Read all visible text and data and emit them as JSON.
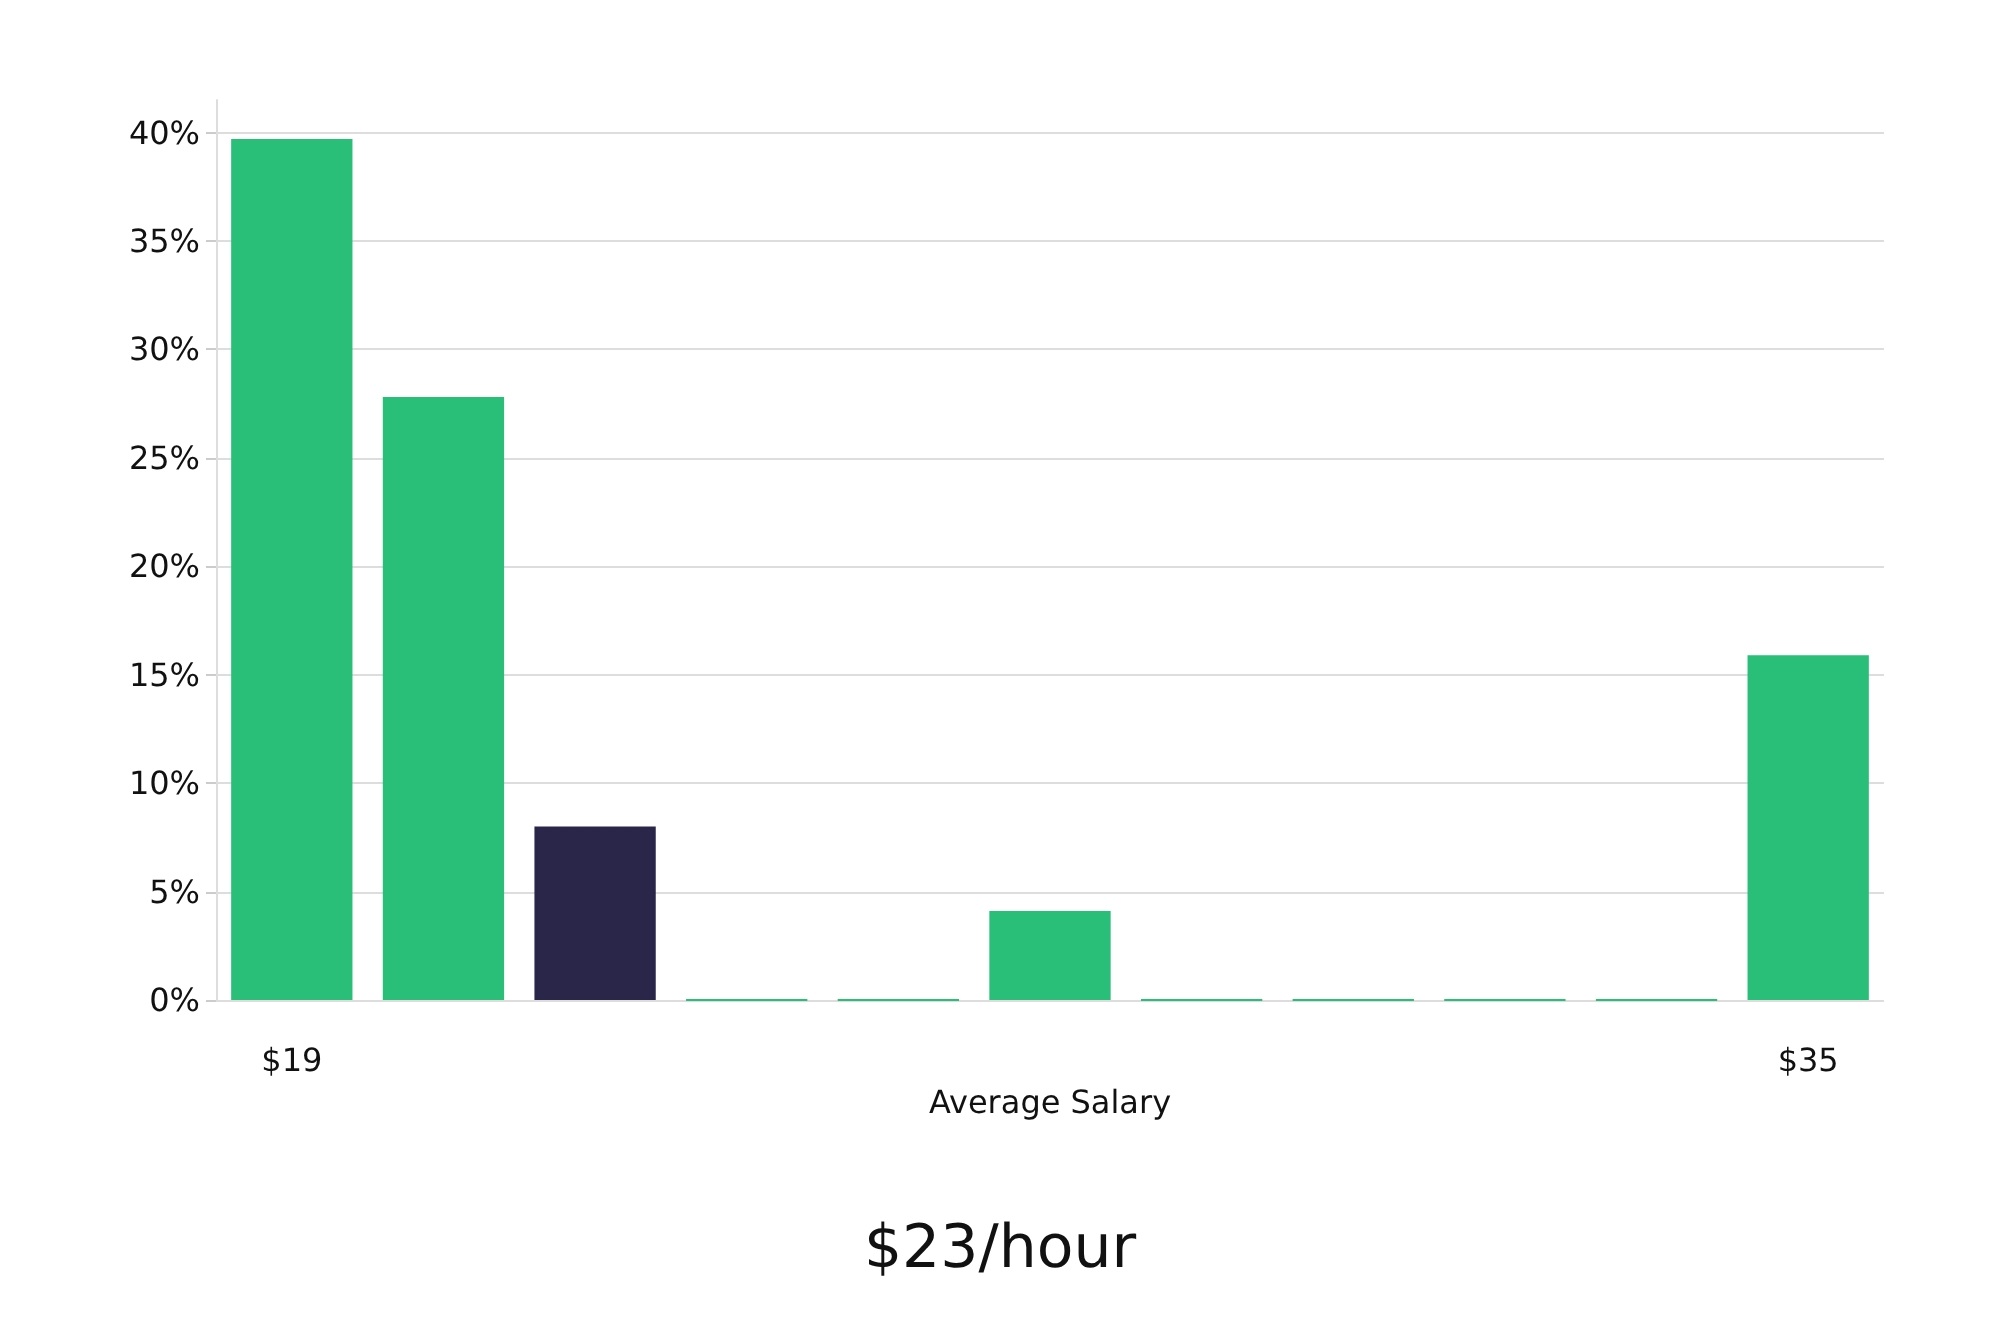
{
  "chart_data": {
    "type": "bar",
    "title": "$23/hour",
    "xlabel": "Average Salary",
    "categories": [
      "$19",
      null,
      null,
      null,
      null,
      null,
      null,
      null,
      null,
      null,
      "$35"
    ],
    "values": [
      39.7,
      27.8,
      8.0,
      0,
      0,
      4.1,
      0,
      0,
      0,
      0,
      15.9
    ],
    "colors": [
      "#2abf78",
      "#2abf78",
      "#2a2649",
      "#2abf78",
      "#2abf78",
      "#2abf78",
      "#2abf78",
      "#2abf78",
      "#2abf78",
      "#2abf78",
      "#2abf78"
    ],
    "ylim": [
      0,
      41.5
    ],
    "yticks": [
      {
        "value": 0,
        "label": "0%"
      },
      {
        "value": 5,
        "label": "5%"
      },
      {
        "value": 10,
        "label": "10%"
      },
      {
        "value": 15,
        "label": "15%"
      },
      {
        "value": 20,
        "label": "20%"
      },
      {
        "value": 25,
        "label": "25%"
      },
      {
        "value": 30,
        "label": "30%"
      },
      {
        "value": 35,
        "label": "35%"
      },
      {
        "value": 40,
        "label": "40%"
      }
    ],
    "grid": "y"
  }
}
